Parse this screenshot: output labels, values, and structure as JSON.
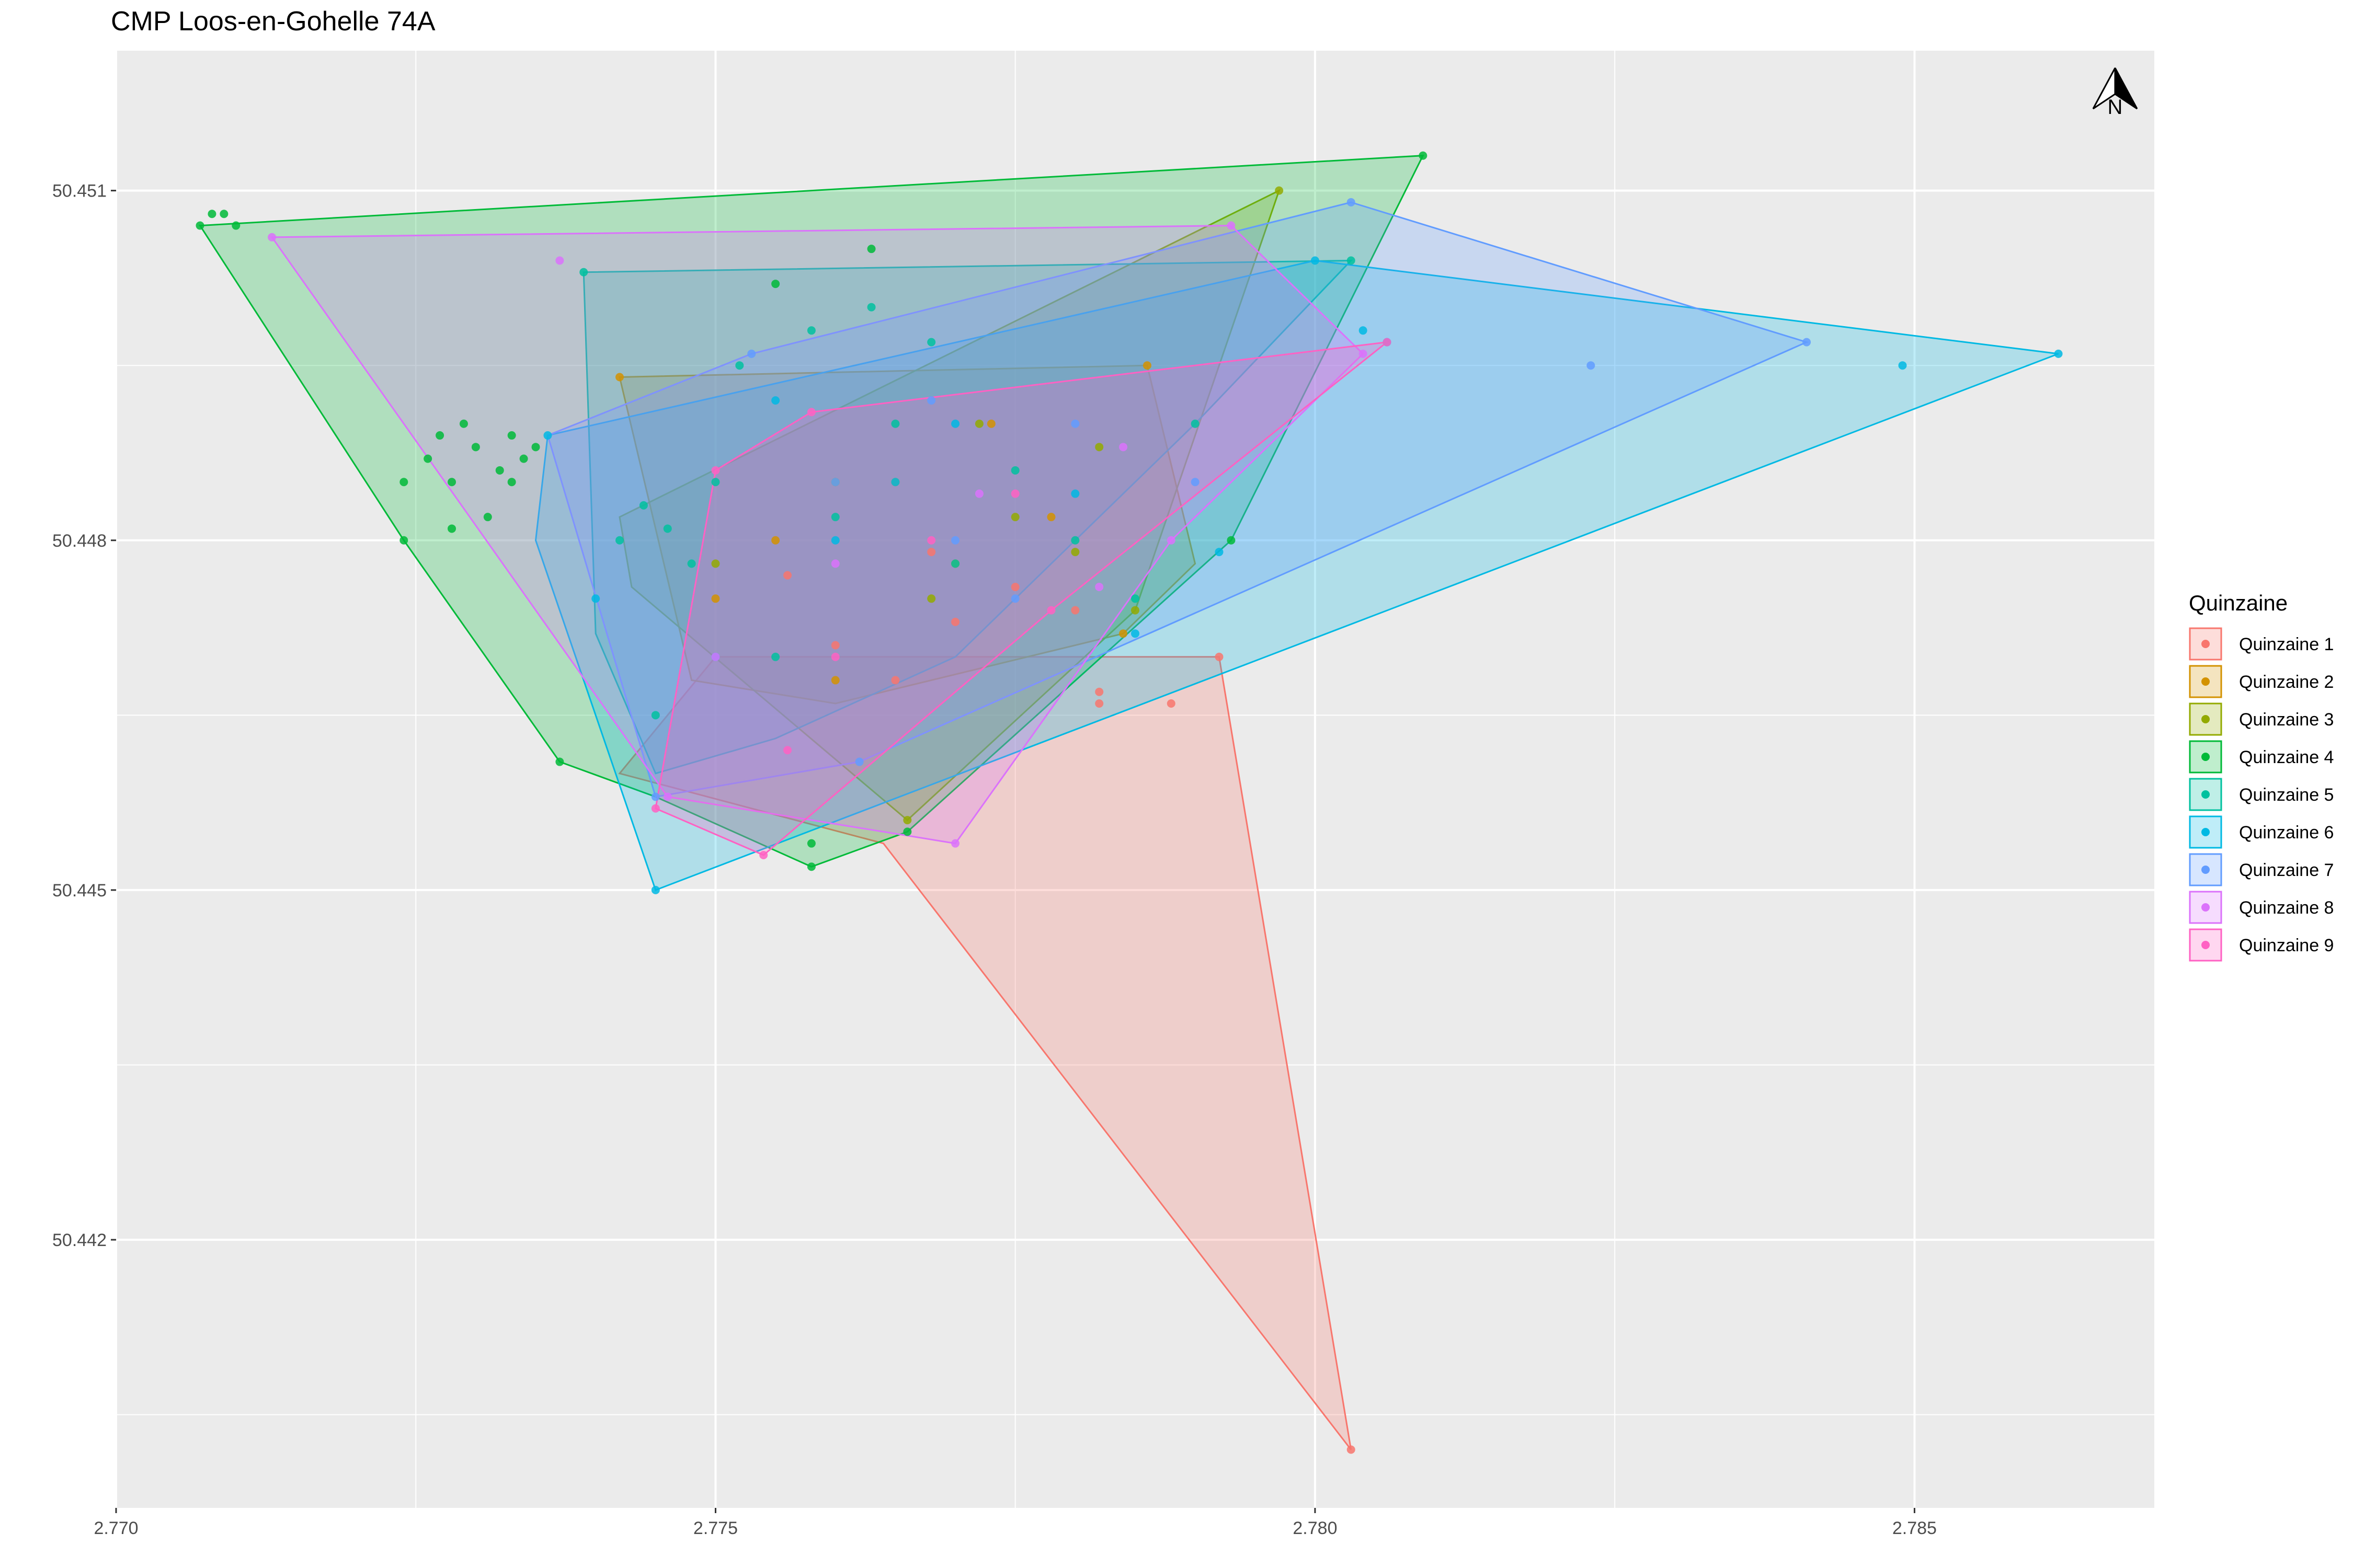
{
  "chart_data": {
    "type": "scatter",
    "title": "CMP Loos-en-Gohelle 74A",
    "xlabel": "",
    "ylabel": "",
    "xlim": [
      2.77,
      2.787
    ],
    "ylim": [
      50.4397,
      50.4522
    ],
    "x_ticks": [
      2.77,
      2.775,
      2.78,
      2.785
    ],
    "x_tick_labels": [
      "2.770",
      "2.775",
      "2.780",
      "2.785"
    ],
    "y_ticks": [
      50.442,
      50.445,
      50.448,
      50.451
    ],
    "y_tick_labels": [
      "50.442",
      "50.445",
      "50.448",
      "50.451"
    ],
    "grid": true,
    "legend_position": "right",
    "north_arrow": "N",
    "legend_title": "Quinzaine",
    "series": [
      {
        "name": "Quinzaine 1",
        "color": "#F8766D",
        "hull": [
          [
            2.775,
            50.447
          ],
          [
            2.7792,
            50.447
          ],
          [
            2.7803,
            50.4402
          ],
          [
            2.7764,
            50.4454
          ],
          [
            2.7742,
            50.446
          ],
          [
            2.775,
            50.447
          ]
        ],
        "points": [
          [
            2.7803,
            50.4402
          ],
          [
            2.7792,
            50.447
          ],
          [
            2.7788,
            50.4466
          ],
          [
            2.7782,
            50.4466
          ],
          [
            2.7782,
            50.4467
          ],
          [
            2.7765,
            50.4468
          ],
          [
            2.776,
            50.4471
          ],
          [
            2.777,
            50.4473
          ],
          [
            2.7775,
            50.4476
          ],
          [
            2.778,
            50.4474
          ],
          [
            2.7756,
            50.4477
          ],
          [
            2.7768,
            50.4479
          ]
        ]
      },
      {
        "name": "Quinzaine 2",
        "color": "#D39200",
        "hull": [
          [
            2.7742,
            50.4494
          ],
          [
            2.7786,
            50.4495
          ],
          [
            2.779,
            50.4478
          ],
          [
            2.7784,
            50.4472
          ],
          [
            2.776,
            50.4466
          ],
          [
            2.7748,
            50.4468
          ],
          [
            2.7742,
            50.4494
          ]
        ],
        "points": [
          [
            2.7742,
            50.4494
          ],
          [
            2.7786,
            50.4495
          ],
          [
            2.7784,
            50.4472
          ],
          [
            2.776,
            50.4468
          ],
          [
            2.7755,
            50.448
          ],
          [
            2.7765,
            50.4485
          ],
          [
            2.777,
            50.4478
          ],
          [
            2.7778,
            50.4482
          ],
          [
            2.775,
            50.4475
          ],
          [
            2.7773,
            50.449
          ]
        ]
      },
      {
        "name": "Quinzaine 3",
        "color": "#93AA00",
        "hull": [
          [
            2.7742,
            50.4482
          ],
          [
            2.7797,
            50.451
          ],
          [
            2.7785,
            50.4474
          ],
          [
            2.7766,
            50.4456
          ],
          [
            2.7743,
            50.4476
          ],
          [
            2.7742,
            50.4482
          ]
        ],
        "points": [
          [
            2.7797,
            50.451
          ],
          [
            2.7766,
            50.4456
          ],
          [
            2.7785,
            50.4474
          ],
          [
            2.778,
            50.4479
          ],
          [
            2.7775,
            50.4482
          ],
          [
            2.7768,
            50.4475
          ],
          [
            2.776,
            50.4485
          ],
          [
            2.775,
            50.4478
          ],
          [
            2.7772,
            50.449
          ],
          [
            2.7782,
            50.4488
          ]
        ]
      },
      {
        "name": "Quinzaine 4",
        "color": "#00BA38",
        "hull": [
          [
            2.7707,
            50.4507
          ],
          [
            2.7809,
            50.4513
          ],
          [
            2.7793,
            50.448
          ],
          [
            2.7766,
            50.4455
          ],
          [
            2.7758,
            50.4452
          ],
          [
            2.7745,
            50.4458
          ],
          [
            2.7737,
            50.4461
          ],
          [
            2.7724,
            50.448
          ],
          [
            2.7707,
            50.4507
          ]
        ],
        "points": [
          [
            2.7707,
            50.4507
          ],
          [
            2.7709,
            50.4508
          ],
          [
            2.7708,
            50.4508
          ],
          [
            2.771,
            50.4507
          ],
          [
            2.7809,
            50.4513
          ],
          [
            2.7724,
            50.448
          ],
          [
            2.7737,
            50.4461
          ],
          [
            2.7758,
            50.4452
          ],
          [
            2.7766,
            50.4455
          ],
          [
            2.7793,
            50.448
          ],
          [
            2.7724,
            50.4485
          ],
          [
            2.7726,
            50.4487
          ],
          [
            2.7728,
            50.4485
          ],
          [
            2.773,
            50.4488
          ],
          [
            2.7732,
            50.4486
          ],
          [
            2.7734,
            50.4487
          ],
          [
            2.7733,
            50.4485
          ],
          [
            2.7735,
            50.4488
          ],
          [
            2.7727,
            50.4489
          ],
          [
            2.7729,
            50.449
          ],
          [
            2.7728,
            50.4481
          ],
          [
            2.7731,
            50.4482
          ],
          [
            2.7733,
            50.4489
          ],
          [
            2.7758,
            50.4454
          ],
          [
            2.7763,
            50.4505
          ],
          [
            2.7755,
            50.4502
          ]
        ]
      },
      {
        "name": "Quinzaine 5",
        "color": "#00C19F",
        "hull": [
          [
            2.7739,
            50.4503
          ],
          [
            2.7803,
            50.4504
          ],
          [
            2.779,
            50.449
          ],
          [
            2.777,
            50.447
          ],
          [
            2.7755,
            50.4463
          ],
          [
            2.7745,
            50.446
          ],
          [
            2.774,
            50.4472
          ],
          [
            2.7739,
            50.4503
          ]
        ],
        "points": [
          [
            2.7739,
            50.4503
          ],
          [
            2.7803,
            50.4504
          ],
          [
            2.779,
            50.449
          ],
          [
            2.7745,
            50.4465
          ],
          [
            2.7742,
            50.448
          ],
          [
            2.7744,
            50.4483
          ],
          [
            2.7746,
            50.4481
          ],
          [
            2.7748,
            50.4478
          ],
          [
            2.775,
            50.4485
          ],
          [
            2.7755,
            50.447
          ],
          [
            2.776,
            50.4482
          ],
          [
            2.7765,
            50.449
          ],
          [
            2.777,
            50.4478
          ],
          [
            2.7775,
            50.4486
          ],
          [
            2.778,
            50.448
          ],
          [
            2.7785,
            50.4475
          ],
          [
            2.7752,
            50.4495
          ],
          [
            2.7758,
            50.4498
          ],
          [
            2.7763,
            50.45
          ],
          [
            2.7768,
            50.4497
          ]
        ]
      },
      {
        "name": "Quinzaine 6",
        "color": "#00B9E3",
        "hull": [
          [
            2.7736,
            50.4489
          ],
          [
            2.78,
            50.4504
          ],
          [
            2.7862,
            50.4496
          ],
          [
            2.7745,
            50.445
          ],
          [
            2.7735,
            50.448
          ],
          [
            2.7736,
            50.4489
          ]
        ],
        "points": [
          [
            2.7745,
            50.445
          ],
          [
            2.7862,
            50.4496
          ],
          [
            2.7849,
            50.4495
          ],
          [
            2.7806,
            50.4497
          ],
          [
            2.7804,
            50.4498
          ],
          [
            2.7792,
            50.4479
          ],
          [
            2.7785,
            50.4472
          ],
          [
            2.78,
            50.4504
          ],
          [
            2.7736,
            50.4489
          ],
          [
            2.774,
            50.4475
          ],
          [
            2.775,
            50.447
          ],
          [
            2.776,
            50.448
          ],
          [
            2.777,
            50.449
          ],
          [
            2.778,
            50.4484
          ],
          [
            2.7755,
            50.4492
          ],
          [
            2.7765,
            50.4485
          ]
        ]
      },
      {
        "name": "Quinzaine 7",
        "color": "#619CFF",
        "hull": [
          [
            2.7736,
            50.4489
          ],
          [
            2.7753,
            50.4496
          ],
          [
            2.7803,
            50.4509
          ],
          [
            2.7841,
            50.4497
          ],
          [
            2.7762,
            50.4461
          ],
          [
            2.7745,
            50.4458
          ],
          [
            2.7736,
            50.4489
          ]
        ],
        "points": [
          [
            2.7803,
            50.4509
          ],
          [
            2.7841,
            50.4497
          ],
          [
            2.7823,
            50.4495
          ],
          [
            2.7762,
            50.4461
          ],
          [
            2.7745,
            50.4458
          ],
          [
            2.7753,
            50.4496
          ],
          [
            2.776,
            50.4485
          ],
          [
            2.777,
            50.448
          ],
          [
            2.778,
            50.449
          ],
          [
            2.779,
            50.4485
          ],
          [
            2.7768,
            50.4492
          ],
          [
            2.7775,
            50.4475
          ]
        ]
      },
      {
        "name": "Quinzaine 8",
        "color": "#DB72FB",
        "hull": [
          [
            2.7713,
            50.4506
          ],
          [
            2.7793,
            50.4507
          ],
          [
            2.7804,
            50.4496
          ],
          [
            2.7788,
            50.448
          ],
          [
            2.777,
            50.4454
          ],
          [
            2.7746,
            50.4458
          ],
          [
            2.7713,
            50.4506
          ]
        ],
        "points": [
          [
            2.7713,
            50.4506
          ],
          [
            2.7737,
            50.4504
          ],
          [
            2.7793,
            50.4507
          ],
          [
            2.7804,
            50.4496
          ],
          [
            2.777,
            50.4454
          ],
          [
            2.7746,
            50.4458
          ],
          [
            2.7788,
            50.448
          ],
          [
            2.7784,
            50.4488
          ],
          [
            2.775,
            50.447
          ],
          [
            2.776,
            50.4478
          ],
          [
            2.7772,
            50.4484
          ],
          [
            2.7782,
            50.4476
          ]
        ]
      },
      {
        "name": "Quinzaine 9",
        "color": "#FF61C3",
        "hull": [
          [
            2.775,
            50.4486
          ],
          [
            2.7758,
            50.4491
          ],
          [
            2.7806,
            50.4497
          ],
          [
            2.7778,
            50.4474
          ],
          [
            2.7754,
            50.4453
          ],
          [
            2.7745,
            50.4457
          ],
          [
            2.775,
            50.4486
          ]
        ],
        "points": [
          [
            2.7806,
            50.4497
          ],
          [
            2.7754,
            50.4453
          ],
          [
            2.7745,
            50.4457
          ],
          [
            2.775,
            50.4486
          ],
          [
            2.7758,
            50.4491
          ],
          [
            2.7778,
            50.4474
          ],
          [
            2.776,
            50.447
          ],
          [
            2.7768,
            50.448
          ],
          [
            2.7775,
            50.4484
          ],
          [
            2.7756,
            50.4462
          ]
        ]
      }
    ]
  }
}
